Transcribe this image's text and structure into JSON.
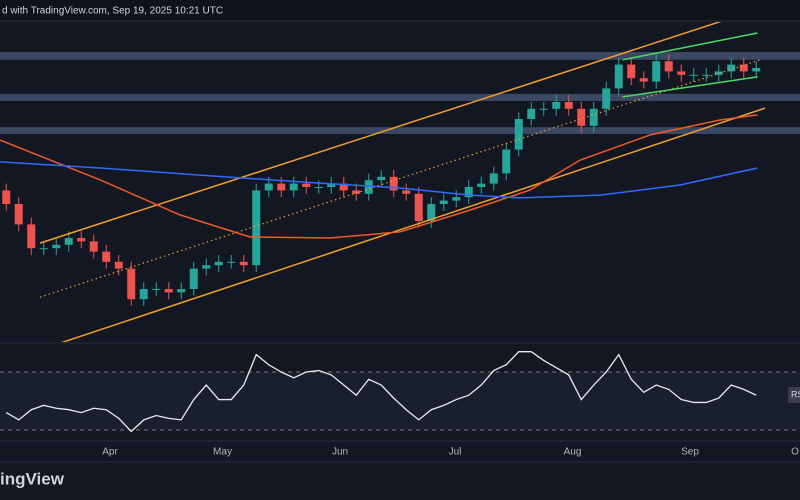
{
  "chart_data": {
    "type": "candlestick",
    "header": "d with TradingView.com, Sep 19, 2025 10:21 UTC",
    "logo": "ingView",
    "rsi_label": "RS",
    "xlim": [
      0,
      64
    ],
    "xticks": [
      {
        "value": 8.8,
        "label": "Apr"
      },
      {
        "value": 17.8,
        "label": "May"
      },
      {
        "value": 27.2,
        "label": "Jun"
      },
      {
        "value": 36.4,
        "label": "Jul"
      },
      {
        "value": 45.8,
        "label": "Aug"
      },
      {
        "value": 55.2,
        "label": "Sep"
      },
      {
        "value": 63.6,
        "label": "O"
      }
    ],
    "ylim": [
      0,
      100
    ],
    "up_color": "#26a69a",
    "down_color": "#ef5350",
    "open": [
      44,
      40,
      34,
      27,
      27,
      28,
      30,
      29,
      26,
      23,
      21,
      12,
      15,
      15,
      14,
      15,
      21,
      22,
      23,
      23,
      22,
      44,
      46,
      44,
      46,
      45,
      45,
      46,
      44,
      43,
      47,
      48,
      44,
      43,
      35,
      40,
      41,
      42,
      45,
      46,
      49,
      56,
      65,
      68,
      68,
      70,
      68,
      63,
      68,
      74,
      81,
      77,
      76,
      82,
      79,
      78,
      78,
      78,
      79,
      81,
      79
    ],
    "high": [
      46,
      42,
      36,
      29,
      30,
      32,
      32,
      31,
      28,
      25,
      23,
      17,
      17,
      17,
      17,
      23,
      24,
      25,
      25,
      25,
      46,
      48,
      48,
      48,
      48,
      47,
      48,
      48,
      46,
      49,
      50,
      50,
      46,
      45,
      42,
      43,
      44,
      47,
      48,
      51,
      58,
      67,
      70,
      70,
      72,
      72,
      70,
      70,
      76,
      83,
      83,
      79,
      84,
      84,
      81,
      80,
      80,
      81,
      83,
      83,
      82
    ],
    "low": [
      38,
      32,
      25,
      25,
      25,
      26,
      27,
      24,
      21,
      19,
      10,
      10,
      13,
      12,
      12,
      13,
      19,
      20,
      21,
      20,
      20,
      42,
      42,
      42,
      43,
      43,
      43,
      42,
      41,
      41,
      45,
      42,
      41,
      33,
      33,
      38,
      39,
      40,
      43,
      44,
      47,
      54,
      63,
      66,
      66,
      66,
      61,
      61,
      66,
      72,
      75,
      74,
      74,
      77,
      76,
      76,
      76,
      76,
      77,
      77,
      77
    ],
    "close": [
      40,
      34,
      27,
      27,
      28,
      30,
      29,
      26,
      23,
      21,
      12,
      15,
      15,
      14,
      15,
      21,
      22,
      23,
      23,
      22,
      44,
      46,
      44,
      46,
      45,
      45,
      46,
      44,
      43,
      47,
      48,
      44,
      43,
      35,
      40,
      41,
      42,
      45,
      46,
      49,
      56,
      65,
      68,
      68,
      70,
      68,
      63,
      68,
      74,
      81,
      77,
      76,
      82,
      79,
      78,
      78,
      78,
      79,
      81,
      79,
      80
    ],
    "zone_color": "#4a5a7a",
    "zones": [
      [
        82.4,
        84.7
      ],
      [
        70.3,
        72.4
      ],
      [
        60.6,
        62.6
      ]
    ],
    "overlays": [
      {
        "color": "#f0a030",
        "style": "solid",
        "x": [
          3.2,
          58
        ],
        "values": [
          28.5,
          94.1
        ]
      },
      {
        "color": "#f0a030",
        "style": "solid",
        "x": [
          3.6,
          61.2
        ],
        "values": [
          -2.4,
          68.2
        ]
      },
      {
        "color": "#f0a030",
        "style": "dotted",
        "x": [
          3.2,
          60.8
        ],
        "values": [
          12.6,
          82.4
        ]
      },
      {
        "color": "#4cd964",
        "style": "solid",
        "x": [
          49.8,
          60.6
        ],
        "values": [
          82.4,
          90.3
        ]
      },
      {
        "color": "#4cd964",
        "style": "solid",
        "x": [
          49.8,
          60.6
        ],
        "values": [
          71.5,
          77.4
        ]
      },
      {
        "color": "#f05a28",
        "style": "solid",
        "x": [
          0,
          8,
          14.4,
          20,
          26.4,
          32,
          37.6,
          42.4,
          46.4,
          52,
          57.6,
          60.6
        ],
        "values": [
          58.8,
          47.1,
          36.8,
          30.3,
          30,
          31.8,
          38.2,
          44.1,
          52.9,
          60.3,
          64.7,
          66.2
        ]
      },
      {
        "color": "#2f6bff",
        "style": "solid",
        "x": [
          0,
          8,
          16,
          24,
          32,
          37.6,
          41.6,
          48,
          54.4,
          60.6
        ],
        "values": [
          52.4,
          50.6,
          48.5,
          46.5,
          44.7,
          42.6,
          41.8,
          42.6,
          45.6,
          50.6
        ]
      }
    ],
    "rsi": {
      "color": "#e8eaf0",
      "ylim": [
        0,
        100
      ],
      "yticks": [
        70,
        30
      ],
      "values": [
        42,
        37,
        44,
        47,
        45,
        44,
        42,
        45,
        44,
        38,
        29,
        37,
        40,
        38,
        37,
        51,
        61,
        51,
        51,
        61,
        82,
        75,
        70,
        66,
        70,
        71,
        68,
        61,
        54,
        65,
        61,
        52,
        44,
        37,
        44,
        47,
        51,
        54,
        61,
        71,
        75,
        84,
        84,
        78,
        73,
        68,
        51,
        61,
        70,
        82,
        65,
        56,
        61,
        58,
        51,
        49,
        49,
        52,
        61,
        58,
        54
      ]
    }
  }
}
